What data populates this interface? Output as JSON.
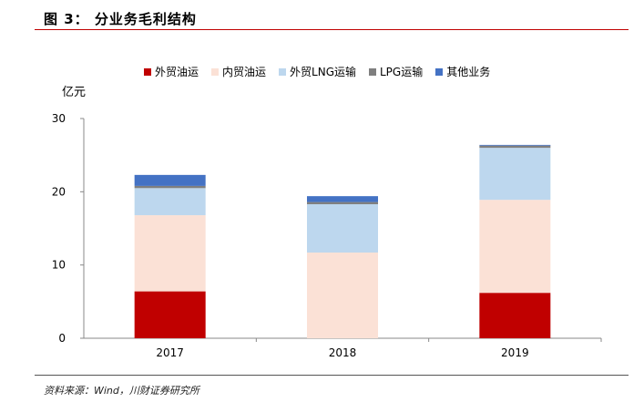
{
  "header": {
    "title": "图 3： 分业务毛利结构"
  },
  "footer": {
    "source": "资料来源：Wind，川财证券研究所"
  },
  "chart_data": {
    "type": "bar",
    "stacked": true,
    "unit_label": "亿元",
    "categories": [
      "2017",
      "2018",
      "2019"
    ],
    "ylim": [
      0,
      30
    ],
    "yticks": [
      "0",
      "10",
      "20",
      "30"
    ],
    "legend_position": "top",
    "series": [
      {
        "name": "外贸油运",
        "color": "#c00000",
        "values": [
          6.4,
          0,
          6.2
        ]
      },
      {
        "name": "内贸油运",
        "color": "#fbe1d6",
        "values": [
          10.4,
          11.7,
          12.7
        ]
      },
      {
        "name": "外贸LNG运输",
        "color": "#bdd7ee",
        "values": [
          3.7,
          6.6,
          7.1
        ]
      },
      {
        "name": "LPG运输",
        "color": "#7f7f7f",
        "values": [
          0.3,
          0.3,
          0.3
        ]
      },
      {
        "name": "其他业务",
        "color": "#4472c4",
        "values": [
          1.5,
          0.8,
          0.1
        ]
      }
    ]
  }
}
